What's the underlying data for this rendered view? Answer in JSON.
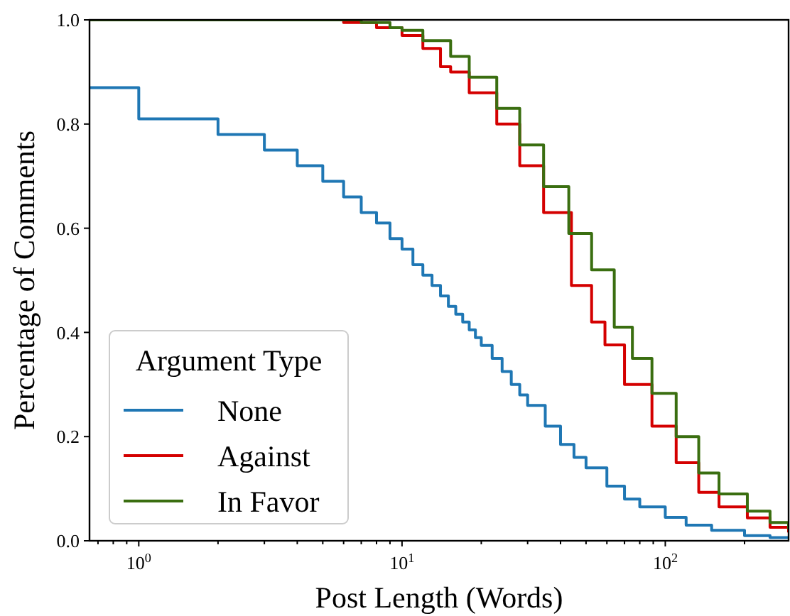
{
  "chart_data": {
    "type": "step",
    "xlabel": "Post Length (Words)",
    "ylabel": "Percentage of Comments",
    "legend_title": "Argument Type",
    "legend": "bottom left",
    "log": "x",
    "grid": false,
    "xlim": [
      0.65,
      294
    ],
    "ylim": [
      0,
      1
    ],
    "xticks": [
      {
        "value": 0.7,
        "label": null
      },
      {
        "value": 0.8,
        "label": null
      },
      {
        "value": 0.9,
        "label": null
      },
      {
        "value": 1,
        "label": "10$^{0}$"
      },
      {
        "value": 2,
        "label": null
      },
      {
        "value": 3,
        "label": null
      },
      {
        "value": 4,
        "label": null
      },
      {
        "value": 5,
        "label": null
      },
      {
        "value": 6,
        "label": null
      },
      {
        "value": 7,
        "label": null
      },
      {
        "value": 8,
        "label": null
      },
      {
        "value": 9,
        "label": null
      },
      {
        "value": 10,
        "label": "10$^{1}$"
      },
      {
        "value": 20,
        "label": null
      },
      {
        "value": 30,
        "label": null
      },
      {
        "value": 40,
        "label": null
      },
      {
        "value": 50,
        "label": null
      },
      {
        "value": 60,
        "label": null
      },
      {
        "value": 70,
        "label": null
      },
      {
        "value": 80,
        "label": null
      },
      {
        "value": 90,
        "label": null
      },
      {
        "value": 100,
        "label": "10$^{2}$"
      },
      {
        "value": 200,
        "label": null
      }
    ],
    "yticks": [
      {
        "value": 0,
        "label": "0.0"
      },
      {
        "value": 0.2,
        "label": "0.2"
      },
      {
        "value": 0.4,
        "label": "0.4"
      },
      {
        "value": 0.6,
        "label": "0.6"
      },
      {
        "value": 0.8,
        "label": "0.8"
      },
      {
        "value": 1,
        "label": "1.0"
      }
    ],
    "series": [
      {
        "name": "None",
        "color": "#1f77b4",
        "x": [
          0.65,
          1,
          2,
          3,
          4,
          5,
          6,
          7,
          8,
          9,
          10,
          11,
          12,
          13,
          14,
          15,
          16,
          17,
          18,
          19,
          20,
          22,
          24,
          26,
          28,
          30,
          35,
          40,
          45,
          50,
          60,
          70,
          80,
          100,
          120,
          150,
          200,
          250,
          294
        ],
        "values": [
          0.87,
          0.81,
          0.78,
          0.75,
          0.72,
          0.69,
          0.66,
          0.63,
          0.61,
          0.58,
          0.56,
          0.53,
          0.51,
          0.49,
          0.47,
          0.45,
          0.435,
          0.42,
          0.405,
          0.39,
          0.375,
          0.35,
          0.325,
          0.3,
          0.28,
          0.26,
          0.22,
          0.185,
          0.16,
          0.14,
          0.105,
          0.08,
          0.065,
          0.045,
          0.03,
          0.02,
          0.01,
          0.006,
          0.004
        ]
      },
      {
        "name": "Against",
        "color": "#d40000",
        "x": [
          0.65,
          6,
          8,
          10,
          12,
          14,
          15.3,
          18,
          22.9,
          28,
          34.5,
          44,
          52.5,
          59,
          70,
          89,
          110,
          134,
          160,
          205,
          250,
          294
        ],
        "values": [
          1,
          0.995,
          0.985,
          0.97,
          0.945,
          0.91,
          0.9,
          0.86,
          0.8,
          0.72,
          0.63,
          0.49,
          0.42,
          0.376,
          0.3,
          0.22,
          0.15,
          0.093,
          0.065,
          0.044,
          0.026,
          0.016
        ]
      },
      {
        "name": "In Favor",
        "color": "#3a6e10",
        "x": [
          0.65,
          5,
          7,
          9,
          10,
          12,
          15.3,
          18,
          22.9,
          28,
          34.5,
          43,
          52.5,
          64,
          75,
          89,
          110,
          134,
          160,
          205,
          250,
          294
        ],
        "values": [
          1,
          1,
          0.995,
          0.985,
          0.98,
          0.96,
          0.93,
          0.89,
          0.83,
          0.76,
          0.68,
          0.59,
          0.52,
          0.41,
          0.35,
          0.283,
          0.2,
          0.13,
          0.09,
          0.057,
          0.035,
          0.022
        ]
      }
    ]
  }
}
